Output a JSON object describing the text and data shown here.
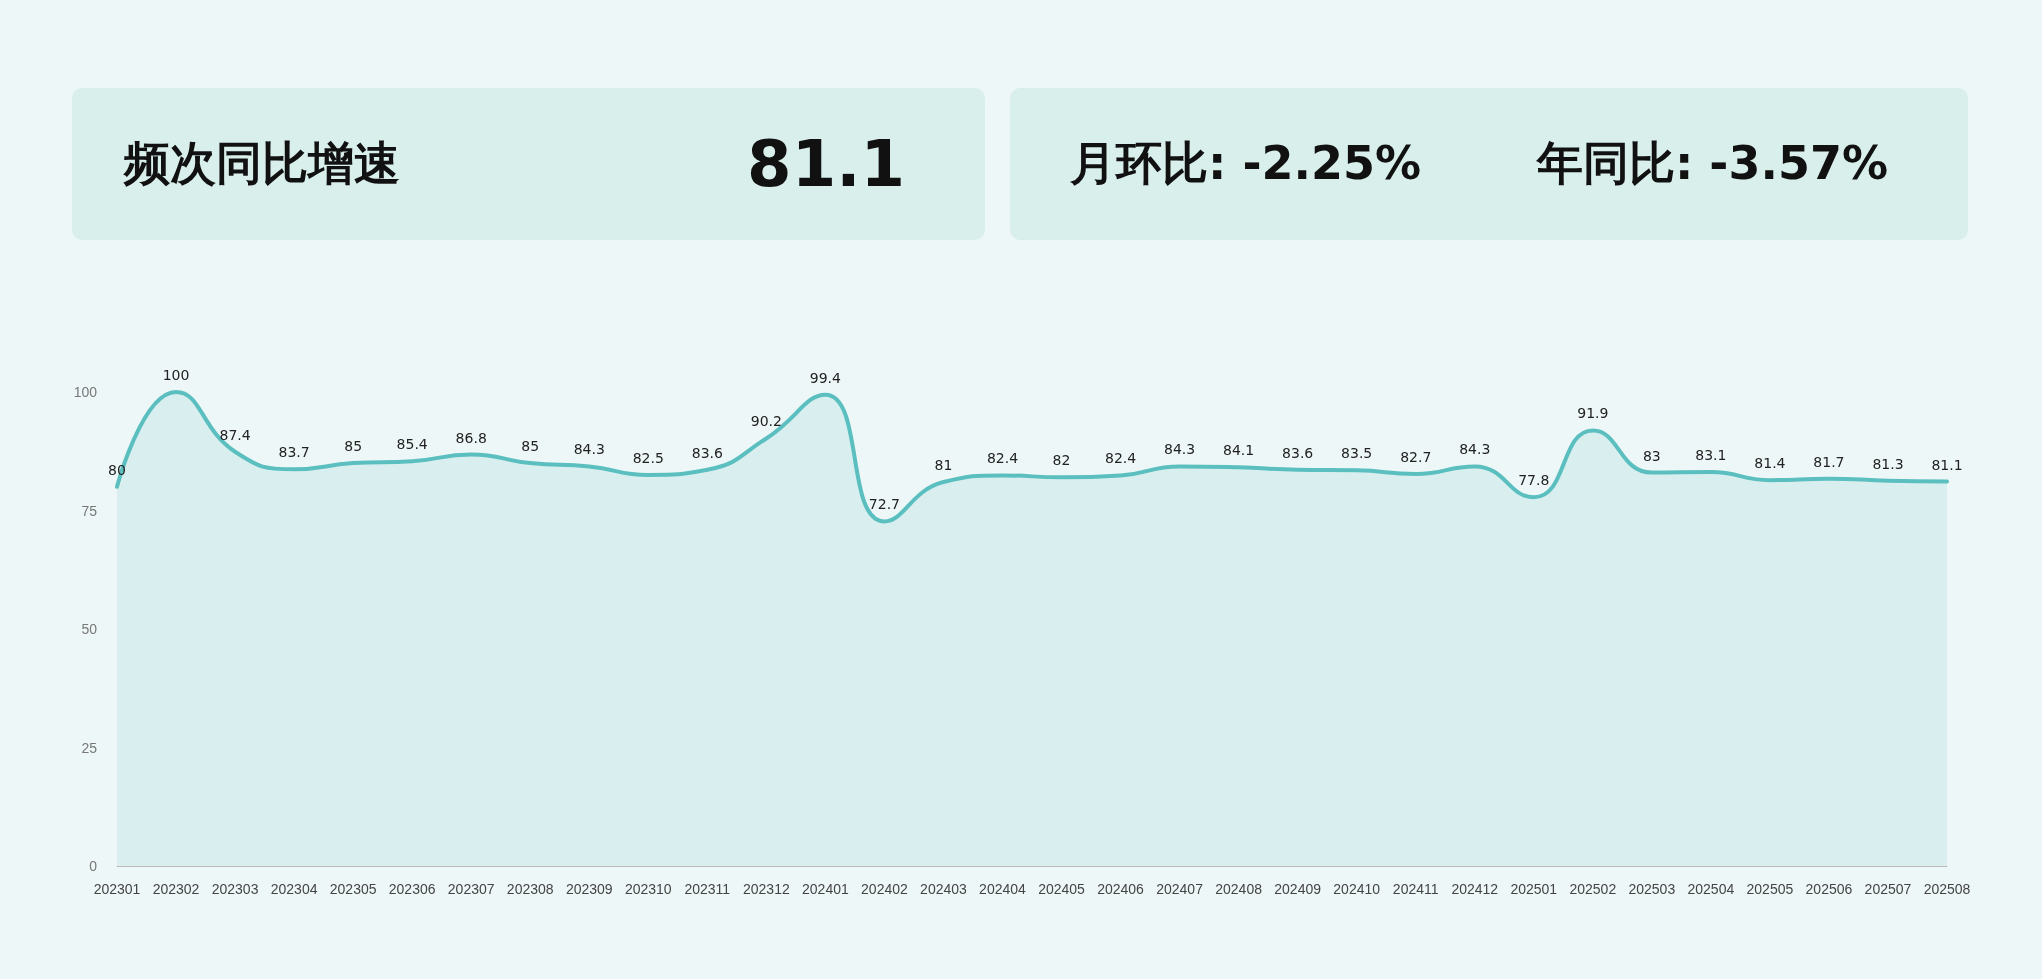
{
  "chart_data": {
    "type": "area",
    "annotations": [
      "频次同比增速",
      "81.1",
      "月环比: -2.25%",
      "年同比: -3.57%"
    ],
    "categories": [
      "202301",
      "202302",
      "202303",
      "202304",
      "202305",
      "202306",
      "202307",
      "202308",
      "202309",
      "202310",
      "202311",
      "202312",
      "202401",
      "202402",
      "202403",
      "202404",
      "202405",
      "202406",
      "202407",
      "202408",
      "202409",
      "202410",
      "202411",
      "202412",
      "202501",
      "202502",
      "202503",
      "202504",
      "202505",
      "202506",
      "202507",
      "202508"
    ],
    "series": [
      {
        "color": "#5bbfc0",
        "values": [
          80,
          100,
          87.4,
          83.7,
          85,
          85.4,
          86.8,
          85,
          84.3,
          82.5,
          83.6,
          90.2,
          99.4,
          72.7,
          81,
          82.4,
          82,
          82.4,
          84.3,
          84.1,
          83.6,
          83.5,
          82.7,
          84.3,
          77.8,
          91.9,
          83,
          83.1,
          81.4,
          81.7,
          81.3,
          81.1
        ]
      }
    ],
    "ylim": [
      0,
      100
    ],
    "yticks": [
      0,
      25,
      50,
      75,
      100
    ],
    "grid": false,
    "data_labels": true,
    "marker": "none",
    "line_style": "solid"
  }
}
